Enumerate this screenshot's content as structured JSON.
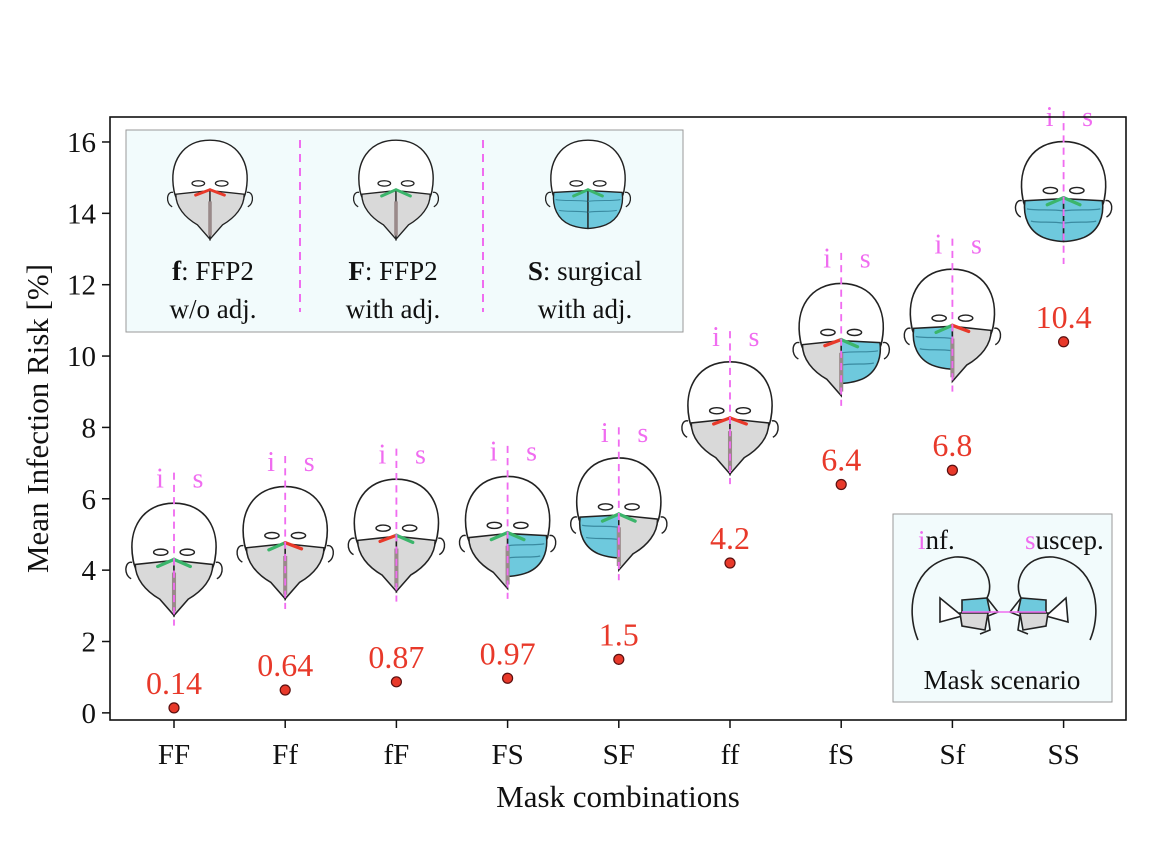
{
  "chart_data": {
    "type": "scatter",
    "categories": [
      "FF",
      "Ff",
      "fF",
      "FS",
      "SF",
      "ff",
      "fS",
      "Sf",
      "SS"
    ],
    "values": [
      0.14,
      0.64,
      0.87,
      0.97,
      1.5,
      4.2,
      6.4,
      6.8,
      10.4
    ],
    "value_labels": [
      "0.14",
      "0.64",
      "0.87",
      "0.97",
      "1.5",
      "4.2",
      "6.4",
      "6.8",
      "10.4"
    ],
    "xlabel": "Mask combinations",
    "ylabel": "Mean Infection Risk  [%]",
    "ylim": [
      -0.2,
      16.7
    ],
    "yticks": [
      "0",
      "2",
      "4",
      "6",
      "8",
      "10",
      "12",
      "14",
      "16"
    ],
    "grid": false,
    "marker_color": "#e8392a",
    "label_color": "#e8392a",
    "face_labels": {
      "infected": "i",
      "susceptible": "s"
    },
    "face_label_color": "#f06cf0"
  },
  "legend": {
    "placement": "top-left",
    "items": [
      {
        "code": "f",
        "line1": ": FFP2",
        "line2": "w/o adj."
      },
      {
        "code": "F",
        "line1": ": FFP2",
        "line2": "with adj."
      },
      {
        "code": "S",
        "line1": ": surgical",
        "line2": "with adj."
      }
    ]
  },
  "scenario_inset": {
    "placement": "bottom-right",
    "inf_initial": "i",
    "inf_rest": "nf.",
    "sus_initial": "s",
    "sus_rest": "uscep.",
    "caption": "Mask scenario"
  },
  "colors": {
    "ffp2_mask": "#d9d9d9",
    "surgical_mask": "#6ec9dd",
    "adjusted_clip": "#3bb56b",
    "unadjusted_clip": "#e8392a",
    "legend_bg": "#f2fbfc",
    "divider": "#f06cf0"
  }
}
